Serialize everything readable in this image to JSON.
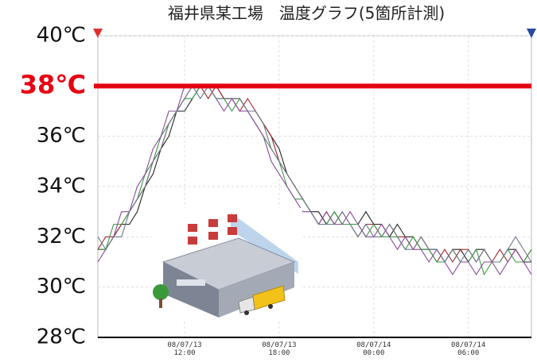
{
  "chart_data": {
    "type": "line",
    "title": "福井県某工場　温度グラフ(5箇所計測)",
    "categories": [
      null,
      null,
      null,
      null,
      null,
      null,
      null,
      null,
      null,
      null,
      null,
      "08/07/13\n12:00",
      null,
      null,
      null,
      null,
      null,
      null,
      null,
      null,
      null,
      null,
      null,
      "08/07/13\n18:00",
      null,
      null,
      null,
      null,
      null,
      null,
      null,
      null,
      null,
      null,
      null,
      "08/07/14\n00:00",
      null,
      null,
      null,
      null,
      null,
      null,
      null,
      null,
      null,
      null,
      null,
      "08/07/14\n06:00",
      null,
      null,
      null,
      null,
      null,
      null,
      null,
      null
    ],
    "series": [
      {
        "color": "#222222",
        "values": [
          31.5,
          31.5,
          32,
          32.5,
          32.5,
          33,
          34,
          34.5,
          35.5,
          36,
          37,
          37,
          37.5,
          38,
          38,
          38,
          37.5,
          37.5,
          37.5,
          37,
          37,
          36.5,
          36,
          35.5,
          34.5,
          34,
          33.5,
          33,
          33,
          32.5,
          33,
          32.5,
          32.5,
          32.5,
          33,
          32.5,
          32.5,
          32,
          32.5,
          32,
          32,
          31.5,
          31.5,
          31.5,
          31,
          31.5,
          31.5,
          31,
          31.5,
          31.5,
          31,
          31,
          31.5,
          31.5,
          31,
          31
        ]
      },
      {
        "color": "#a0282d",
        "values": [
          31.5,
          32,
          32,
          32.5,
          33,
          33.5,
          34,
          35,
          35.5,
          36.5,
          37,
          37.5,
          38,
          38,
          37.5,
          38,
          37.5,
          37.5,
          37,
          37.5,
          37,
          36.5,
          36,
          35,
          34.5,
          34,
          33.5,
          33,
          32.5,
          33,
          32.5,
          33,
          32.5,
          32,
          32.5,
          32.5,
          32,
          32.5,
          32,
          32,
          31.5,
          32,
          31.5,
          31,
          31.5,
          31,
          31.5,
          31.5,
          31,
          31.5,
          31,
          31.5,
          31,
          31.5,
          31,
          31.5
        ]
      },
      {
        "color": "#3c9a46",
        "values": [
          31.5,
          31.5,
          32.5,
          32.5,
          33,
          33.5,
          34.5,
          35,
          36,
          36.5,
          37,
          37.5,
          37.5,
          38,
          38,
          37.5,
          37.5,
          37,
          37.5,
          37,
          36.5,
          36,
          35.5,
          35,
          34,
          33.5,
          33.5,
          33,
          32.5,
          32.5,
          33,
          32.5,
          32.5,
          32.5,
          32,
          32.5,
          32,
          32,
          32,
          31.5,
          32,
          31.5,
          31.5,
          31,
          31,
          31.5,
          31,
          31,
          31.5,
          30.5,
          31,
          31,
          31.5,
          31,
          31,
          31.5
        ]
      },
      {
        "color": "#8a4a9c",
        "values": [
          31,
          31.5,
          32,
          33,
          33,
          34,
          34.5,
          35.5,
          36,
          37,
          37,
          38,
          38,
          38,
          38,
          37.5,
          37,
          37.5,
          37,
          37,
          36.5,
          36,
          35,
          34.5,
          34,
          33.5,
          33,
          33,
          32.5,
          33,
          32.5,
          32.5,
          33,
          32.5,
          32,
          32,
          32.5,
          32,
          31.5,
          32,
          31.5,
          31.5,
          31,
          31.5,
          31,
          30.5,
          31,
          31,
          30.5,
          31,
          31,
          30.5,
          31,
          31.5,
          31,
          30.5
        ]
      },
      {
        "color": "#6a7a8a",
        "values": [
          32,
          31.5,
          32,
          32,
          33,
          33.5,
          34,
          35,
          35.5,
          36.5,
          37,
          37.5,
          38,
          37.5,
          38,
          37.5,
          37.5,
          37.5,
          37.5,
          37,
          37,
          36.5,
          35.5,
          35,
          34.5,
          34,
          33.5,
          33,
          32.5,
          32.5,
          32.5,
          33,
          32.5,
          32,
          32.5,
          32,
          32,
          32.5,
          32,
          31.5,
          31.5,
          32,
          31.5,
          31.5,
          31,
          31.5,
          31,
          31.5,
          31,
          31.5,
          31,
          31,
          31.5,
          32,
          31.5,
          31
        ]
      }
    ],
    "ylim": [
      28,
      40
    ],
    "yticks": [
      {
        "value": 28,
        "label": "28℃"
      },
      {
        "value": 30,
        "label": "30℃"
      },
      {
        "value": 32,
        "label": "32℃"
      },
      {
        "value": 34,
        "label": "34℃"
      },
      {
        "value": 36,
        "label": "36℃"
      },
      {
        "value": 38,
        "label": "38℃"
      },
      {
        "value": 40,
        "label": "40℃"
      }
    ],
    "grid": true,
    "highlight_line": {
      "value": 38,
      "color": "#e60012"
    }
  }
}
